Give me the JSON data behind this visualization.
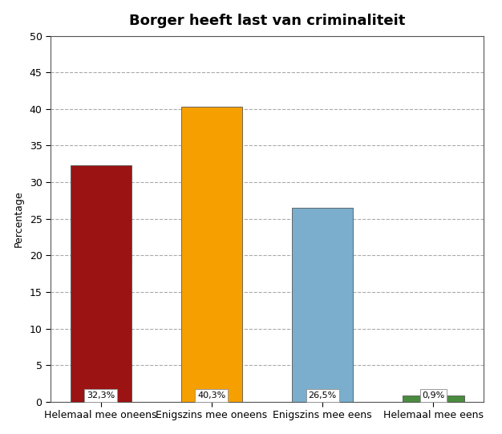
{
  "title": "Borger heeft last van criminaliteit",
  "categories": [
    "Helemaal mee oneens",
    "Enigszins mee oneens",
    "Enigszins mee eens",
    "Helemaal mee eens"
  ],
  "values": [
    32.3,
    40.3,
    26.5,
    0.9
  ],
  "labels": [
    "32,3%",
    "40,3%",
    "26,5%",
    "0,9%"
  ],
  "bar_colors": [
    "#9b1313",
    "#f5a000",
    "#7aaecc",
    "#4a8c3f"
  ],
  "bar_edgecolor": "#555555",
  "ylabel": "Percentage",
  "ylim": [
    0,
    50
  ],
  "yticks": [
    0,
    5,
    10,
    15,
    20,
    25,
    30,
    35,
    40,
    45,
    50
  ],
  "background_color": "#ffffff",
  "plot_bg_color": "#ffffff",
  "grid_color": "#aaaaaa",
  "title_fontsize": 13,
  "label_fontsize": 8,
  "tick_fontsize": 9,
  "ylabel_fontsize": 9,
  "bar_width": 0.55
}
